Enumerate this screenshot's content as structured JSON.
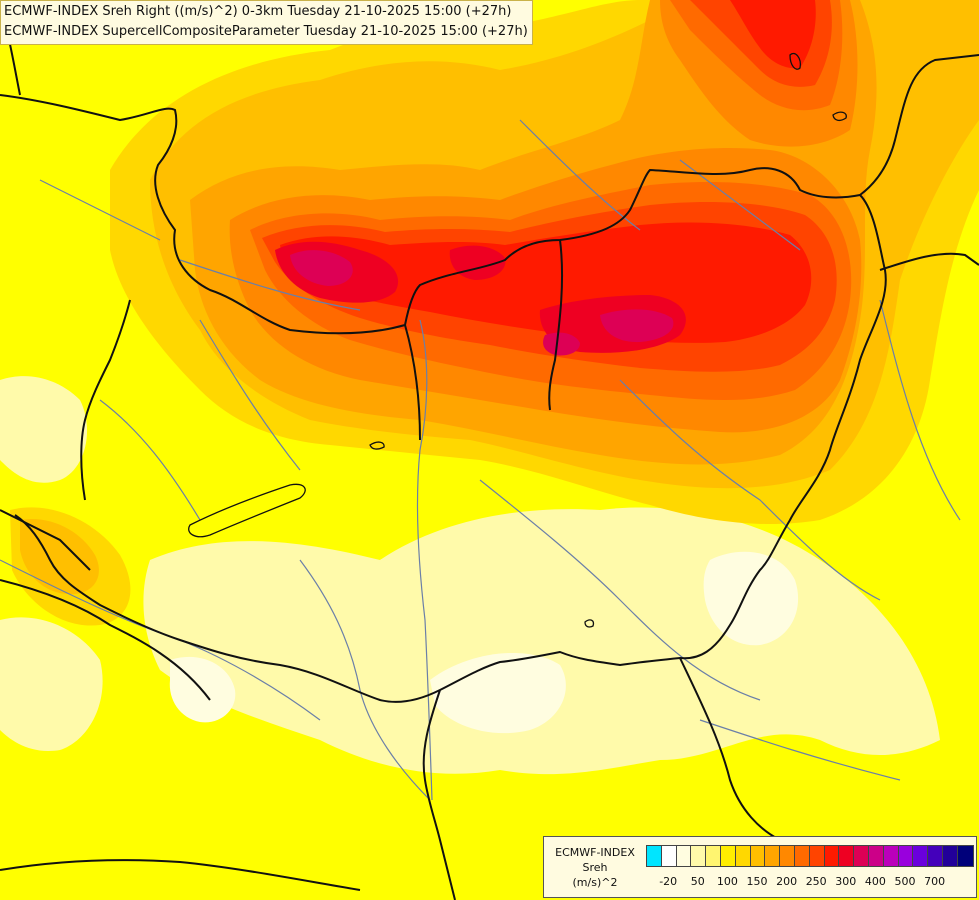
{
  "header": {
    "line1": "ECMWF-INDEX Sreh Right ((m/s)^2) 0-3km Tuesday 21-10-2025 15:00 (+27h)",
    "line2": "ECMWF-INDEX SupercellCompositeParameter Tuesday 21-10-2025 15:00 (+27h)"
  },
  "legend": {
    "line1": "ECMWF-INDEX",
    "line2": "Sreh",
    "line3": "(m/s)^2",
    "colors": [
      "#00e5ff",
      "#ffffff",
      "#fffde0",
      "#fffaaa",
      "#fff570",
      "#ffee00",
      "#ffd800",
      "#ffbf00",
      "#ffa500",
      "#ff8800",
      "#ff6a00",
      "#ff4400",
      "#ff1a00",
      "#ee0022",
      "#dd0055",
      "#cc0088",
      "#bb00bb",
      "#9900dd",
      "#6a00dd",
      "#4400bb",
      "#220099",
      "#00007a"
    ],
    "ticks": [
      {
        "label": "-20",
        "index": 1
      },
      {
        "label": "50",
        "index": 3
      },
      {
        "label": "100",
        "index": 5
      },
      {
        "label": "150",
        "index": 7
      },
      {
        "label": "200",
        "index": 9
      },
      {
        "label": "250",
        "index": 11
      },
      {
        "label": "300",
        "index": 13
      },
      {
        "label": "400",
        "index": 15
      },
      {
        "label": "500",
        "index": 17
      },
      {
        "label": "700",
        "index": 19
      }
    ]
  },
  "map": {
    "colors": {
      "base": "#ffff00",
      "pale": "#fffaaa",
      "very_pale": "#fffde0",
      "light_orange": "#ffd800",
      "orange": "#ffbf00",
      "dark_orange": "#ffa500",
      "orange_red": "#ff8800",
      "red_orange": "#ff6a00",
      "red": "#ff4400",
      "bright_red": "#ff1a00",
      "crimson": "#ee0022",
      "magenta": "#dd0055",
      "border": "#111111",
      "river": "#6b7fa8"
    }
  }
}
